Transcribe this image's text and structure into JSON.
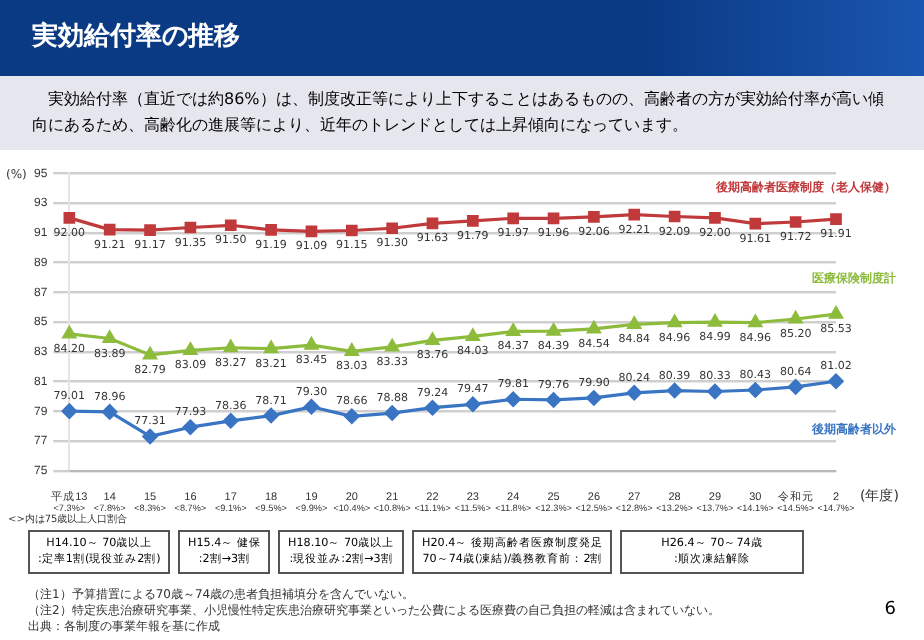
{
  "chart_data": {
    "type": "line",
    "title": "実効給付率の推移",
    "subtitle": "実効給付率（直近では約86%）は、制度改正等により上下することはあるものの、高齢者の方が実効給付率が高い傾向にあるため、高齢化の進展等により、近年のトレンドとしては上昇傾向になっています。",
    "ylabel": "(%)",
    "xlabel": "(年度)",
    "categories": [
      "平成13",
      "14",
      "15",
      "16",
      "17",
      "18",
      "19",
      "20",
      "21",
      "22",
      "23",
      "24",
      "25",
      "26",
      "27",
      "28",
      "29",
      "30",
      "令和元",
      "2"
    ],
    "series": [
      {
        "name": "後期高齢者医療制度（老人保健）",
        "color": "#c0393b",
        "marker": "square",
        "values": [
          92.0,
          91.21,
          91.17,
          91.35,
          91.5,
          91.19,
          91.09,
          91.15,
          91.3,
          91.63,
          91.79,
          91.97,
          91.96,
          92.06,
          92.21,
          92.09,
          92.0,
          91.61,
          91.72,
          91.91
        ],
        "value_labels": [
          "92.00",
          "91.21",
          "91.17",
          "91.35",
          "91.50",
          "91.19",
          "91.09",
          "91.15",
          "91.30",
          "91.63",
          "91.79",
          "91.97",
          "91.96",
          "92.06",
          "92.21",
          "92.09",
          "92.00",
          "91.61",
          "91.72",
          "91.91"
        ]
      },
      {
        "name": "医療保険制度計",
        "color": "#8dbb3c",
        "marker": "triangle",
        "values": [
          84.2,
          83.89,
          82.79,
          83.09,
          83.27,
          83.21,
          83.45,
          83.03,
          83.33,
          83.76,
          84.03,
          84.37,
          84.39,
          84.54,
          84.84,
          84.96,
          84.99,
          84.96,
          85.2,
          85.53
        ],
        "value_labels": [
          "84.20",
          "83.89",
          "82.79",
          "83.09",
          "83.27",
          "83.21",
          "83.45",
          "83.03",
          "83.33",
          "83.76",
          "84.03",
          "84.37",
          "84.39",
          "84.54",
          "84.84",
          "84.96",
          "84.99",
          "84.96",
          "85.20",
          "85.53"
        ]
      },
      {
        "name": "後期高齢者以外",
        "color": "#3a75c4",
        "marker": "diamond",
        "values": [
          79.01,
          78.96,
          77.31,
          77.93,
          78.36,
          78.71,
          79.3,
          78.66,
          78.88,
          79.24,
          79.47,
          79.81,
          79.76,
          79.9,
          80.24,
          80.39,
          80.33,
          80.43,
          80.64,
          81.02
        ],
        "value_labels": [
          "79.01",
          "78.96",
          "77.31",
          "77.93",
          "78.36",
          "78.71",
          "79.30",
          "78.66",
          "78.88",
          "79.24",
          "79.47",
          "79.81",
          "79.76",
          "79.90",
          "80.24",
          "80.39",
          "80.33",
          "80.43",
          "80.64",
          "81.02"
        ]
      }
    ],
    "ylim": [
      75,
      95
    ],
    "yticks": [
      75,
      77,
      79,
      81,
      83,
      85,
      87,
      89,
      91,
      93,
      95
    ],
    "grid": "y",
    "legend": false,
    "line_style": "solid",
    "annotations": [
      "<7.3%>",
      "<7.8%>",
      "<8.3%>",
      "<8.7%>",
      "<9.1%>",
      "<9.5%>",
      "<9.9%>",
      "<10.4%>",
      "<10.8%>",
      "<11.1%>",
      "<11.5%>",
      "<11.8%>",
      "<12.3%>",
      "<12.5%>",
      "<12.8%>",
      "<13.2%>",
      "<13.7%>",
      "<14.1%>",
      "<14.5%>",
      "<14.7%>",
      "<>内は75歳以上人口割合",
      "H14.10～ 70歳以上\n:定率1割(現役並み2割)",
      "H15.4～ 健保\n:2割→3割",
      "H18.10～ 70歳以上\n:現役並み:2割→3割",
      "H20.4～ 後期高齢者医療制度発足\n70～74歳(凍結)/義務教育前：2割",
      "H26.4～ 70～74歳\n:順次凍結解除",
      "（注1）予算措置による70歳～74歳の患者負担補填分を含んでいない。",
      "（注2）特定疾患治療研究事業、小児慢性特定疾患治療研究事業といった公費による医療費の自己負担の軽減は含まれていない。",
      "出典：各制度の事業年報を基に作成",
      "6"
    ]
  }
}
